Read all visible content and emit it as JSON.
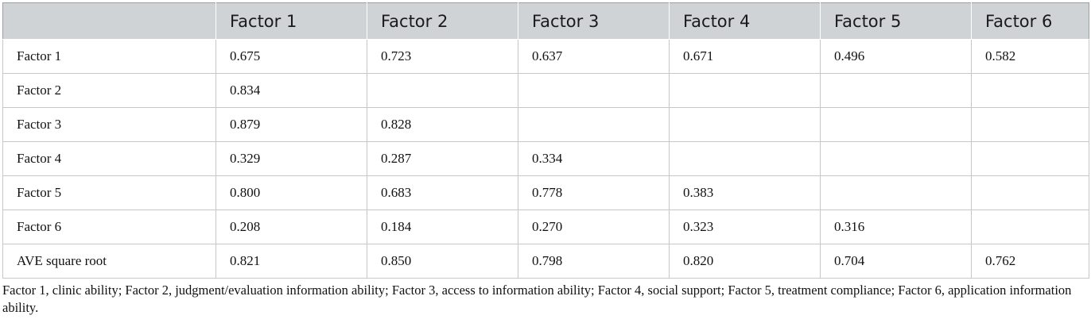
{
  "table": {
    "headers": [
      "",
      "Factor 1",
      "Factor 2",
      "Factor 3",
      "Factor 4",
      "Factor 5",
      "Factor 6"
    ],
    "rows": [
      [
        "Factor 1",
        "0.675",
        "0.723",
        "0.637",
        "0.671",
        "0.496",
        "0.582"
      ],
      [
        "Factor 2",
        "0.834",
        "",
        "",
        "",
        "",
        ""
      ],
      [
        "Factor 3",
        "0.879",
        "0.828",
        "",
        "",
        "",
        ""
      ],
      [
        "Factor 4",
        "0.329",
        "0.287",
        "0.334",
        "",
        "",
        ""
      ],
      [
        "Factor 5",
        "0.800",
        "0.683",
        "0.778",
        "0.383",
        "",
        ""
      ],
      [
        "Factor 6",
        "0.208",
        "0.184",
        "0.270",
        "0.323",
        "0.316",
        ""
      ],
      [
        "AVE square root",
        "0.821",
        "0.850",
        "0.798",
        "0.820",
        "0.704",
        "0.762"
      ]
    ]
  },
  "footnote": "Factor 1, clinic ability; Factor 2, judgment/evaluation information ability; Factor 3, access to information ability; Factor 4, social support; Factor 5, treatment compliance; Factor 6, application information ability."
}
